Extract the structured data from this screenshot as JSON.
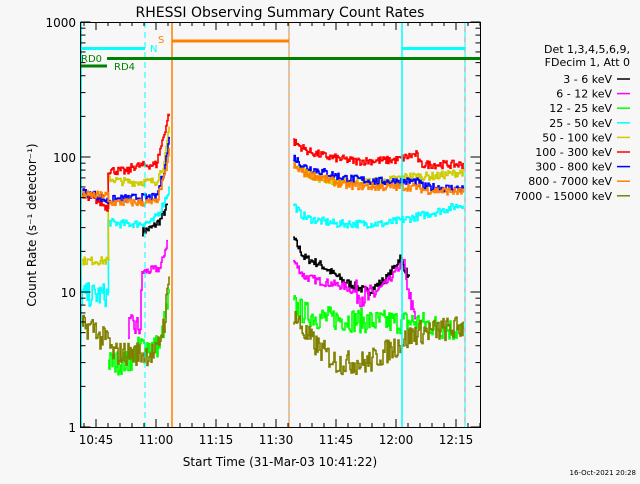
{
  "chart_data": {
    "type": "line",
    "title": "RHESSI Observing Summary Count Rates",
    "xlabel": "Start Time (31-Mar-03 10:41:22)",
    "ylabel": "Count Rate (s⁻¹ detector⁻¹)",
    "yscale": "log",
    "ylim": [
      1,
      1000
    ],
    "xlim_minutes_after_1045": [
      -3.75,
      96
    ],
    "x_ticks": [
      {
        "label": "10:45",
        "min": 0
      },
      {
        "label": "11:00",
        "min": 15
      },
      {
        "label": "11:15",
        "min": 30
      },
      {
        "label": "11:30",
        "min": 45
      },
      {
        "label": "11:45",
        "min": 60
      },
      {
        "label": "12:00",
        "min": 75
      },
      {
        "label": "12:15",
        "min": 90
      }
    ],
    "y_ticks": [
      {
        "label": "1",
        "v": 1
      },
      {
        "label": "10",
        "v": 10
      },
      {
        "label": "100",
        "v": 100
      },
      {
        "label": "1000",
        "v": 1000
      }
    ],
    "legend_header": [
      "Det 1,3,4,5,6,9,",
      "FDecim 1, Att 0"
    ],
    "legend_position": "right",
    "series": [
      {
        "name": "3 - 6 keV",
        "color": "#000000",
        "segments": [
          [
            [
              11.5,
              28
            ],
            [
              14,
              30
            ],
            [
              16,
              34
            ],
            [
              18,
              45
            ]
          ],
          [
            [
              49.3,
              25
            ],
            [
              52,
              18
            ],
            [
              56,
              16
            ],
            [
              62,
              12
            ],
            [
              68,
              10
            ],
            [
              73,
              13
            ],
            [
              76,
              18
            ],
            [
              78.5,
              12
            ]
          ]
        ]
      },
      {
        "name": "6 - 12 keV",
        "color": "#ff00ff",
        "segments": [
          [
            [
              8,
              5.5
            ],
            [
              11,
              5.5
            ],
            [
              11.5,
              14
            ],
            [
              16,
              15
            ],
            [
              18,
              25
            ]
          ],
          [
            [
              49.3,
              17
            ],
            [
              52,
              13
            ],
            [
              56,
              12
            ],
            [
              62,
              11
            ],
            [
              68,
              9
            ],
            [
              73,
              12
            ],
            [
              77,
              17
            ],
            [
              78,
              9
            ],
            [
              80,
              7
            ]
          ]
        ]
      },
      {
        "name": "12 - 25 keV",
        "color": "#00ff00",
        "segments": [
          [
            [
              3,
              3
            ],
            [
              8,
              3
            ],
            [
              11,
              4
            ],
            [
              16,
              4
            ],
            [
              17,
              6
            ],
            [
              18.5,
              10
            ]
          ],
          [
            [
              49.3,
              8
            ],
            [
              52,
              7
            ],
            [
              55,
              6.5
            ],
            [
              70,
              6
            ],
            [
              80,
              6
            ],
            [
              86,
              5.5
            ],
            [
              92,
              5
            ]
          ]
        ]
      },
      {
        "name": "25 - 50 keV",
        "color": "#00ffff",
        "segments": [
          [
            [
              -3.7,
              9.5
            ],
            [
              2.9,
              9.5
            ],
            [
              3,
              33
            ],
            [
              6,
              32
            ],
            [
              10,
              32
            ],
            [
              14,
              33
            ],
            [
              16,
              40
            ],
            [
              18.5,
              60
            ]
          ],
          [
            [
              49.3,
              45
            ],
            [
              51,
              38
            ],
            [
              53,
              35
            ],
            [
              60,
              32
            ],
            [
              72,
              32
            ],
            [
              80,
              36
            ],
            [
              86,
              40
            ],
            [
              92,
              45
            ]
          ]
        ]
      },
      {
        "name": "50 - 100 keV",
        "color": "#cccc00",
        "segments": [
          [
            [
              -3.7,
              17
            ],
            [
              2.9,
              17
            ],
            [
              3,
              70
            ],
            [
              6,
              66
            ],
            [
              10,
              65
            ],
            [
              15,
              66
            ],
            [
              17,
              90
            ],
            [
              18.5,
              180
            ]
          ],
          [
            [
              49.3,
              90
            ],
            [
              52,
              78
            ],
            [
              55,
              70
            ],
            [
              62,
              65
            ],
            [
              72,
              66
            ],
            [
              78,
              72
            ],
            [
              85,
              72
            ],
            [
              92,
              78
            ]
          ]
        ]
      },
      {
        "name": "100 - 300 keV",
        "color": "#ff0000",
        "segments": [
          [
            [
              -3.7,
              50
            ],
            [
              0,
              48
            ],
            [
              2.9,
              42
            ],
            [
              3,
              80
            ],
            [
              8,
              78
            ],
            [
              9,
              85
            ],
            [
              15,
              88
            ],
            [
              16.5,
              130
            ],
            [
              18.5,
              230
            ]
          ],
          [
            [
              49.3,
              130
            ],
            [
              51,
              120
            ],
            [
              53,
              110
            ],
            [
              58,
              100
            ],
            [
              65,
              93
            ],
            [
              75,
              95
            ],
            [
              80,
              105
            ],
            [
              81,
              88
            ],
            [
              92,
              88
            ]
          ]
        ]
      },
      {
        "name": "300 - 800 keV",
        "color": "#0000ff",
        "segments": [
          [
            [
              -3.7,
              55
            ],
            [
              0,
              52
            ],
            [
              2.9,
              47
            ],
            [
              3,
              48
            ],
            [
              10,
              50
            ],
            [
              15,
              50
            ],
            [
              17,
              80
            ],
            [
              18.5,
              150
            ]
          ],
          [
            [
              49.3,
              100
            ],
            [
              52,
              85
            ],
            [
              55,
              80
            ],
            [
              62,
              70
            ],
            [
              70,
              66
            ],
            [
              80,
              66
            ],
            [
              82,
              60
            ],
            [
              92,
              58
            ]
          ]
        ]
      },
      {
        "name": "800 - 7000 keV",
        "color": "#ff8000",
        "segments": [
          [
            [
              -3.7,
              52
            ],
            [
              2.9,
              52
            ],
            [
              3,
              46
            ],
            [
              10,
              46
            ],
            [
              15,
              46
            ],
            [
              17,
              70
            ],
            [
              18.5,
              120
            ]
          ],
          [
            [
              49.3,
              85
            ],
            [
              52,
              76
            ],
            [
              55,
              72
            ],
            [
              62,
              62
            ],
            [
              70,
              60
            ],
            [
              80,
              60
            ],
            [
              82,
              57
            ],
            [
              92,
              55
            ]
          ]
        ]
      },
      {
        "name": "7000 - 15000 keV",
        "color": "#808000",
        "segments": [
          [
            [
              -3.7,
              5.5
            ],
            [
              0,
              5.5
            ],
            [
              0.5,
              4.5
            ],
            [
              3,
              4.5
            ],
            [
              4,
              3.5
            ],
            [
              15,
              3.5
            ],
            [
              17,
              6
            ],
            [
              18.5,
              15
            ]
          ],
          [
            [
              49.3,
              7
            ],
            [
              52,
              5
            ],
            [
              55,
              4
            ],
            [
              60,
              3
            ],
            [
              68,
              3
            ],
            [
              75,
              4
            ],
            [
              80,
              5
            ],
            [
              92,
              5.5
            ]
          ]
        ]
      }
    ],
    "annotations": {
      "n_label": "N",
      "s_label": "S",
      "rd0_label": "RD0",
      "rd4_label": "RD4"
    },
    "footer_timestamp": "16-Oct-2021 20:28"
  }
}
